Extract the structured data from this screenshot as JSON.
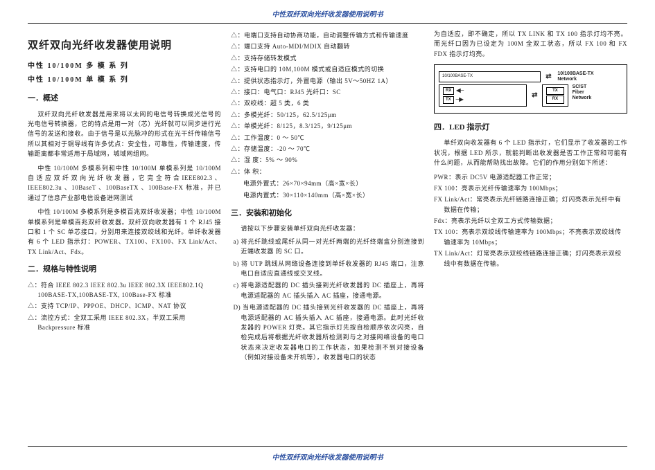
{
  "header_footer": "中性双纤双向光纤收发器使用说明书",
  "colors": {
    "header": "#2b4fa0",
    "text": "#222222",
    "bg": "#ffffff"
  },
  "col1": {
    "title": "双纤双向光纤收发器使用说明",
    "series1": "中性 10/100M 多 模 系 列",
    "series2": "中性 10/100M 单 模 系 列",
    "sec1_h": "一．概述",
    "sec1_p1": "双纤双向光纤收发器是用来将以太网的电信号转换成光信号的光电信号转换器，它的特点是用一对（芯）光纤就可以同步进行光信号的发送和接收。由于信号是以光脉冲的形式在光干纤传输信号所以其相对于铜导线有许多优点：安全性，可靠性，传输速度，传输距离都非常适用于局域网，城域网组网。",
    "sec1_p2": "中性 10/100M 多模系列和中性 10/100M 单模系列是 10/100M 自 适 应 双 纤 双 向 光 纤 收 发 器 ，它 完 全 符 合 IEEE802.3 、 IEEE802.3u 、10BaseT 、100BaseTX 、100Base-FX 标准，并已通过了信息产业部电信设备进网测试",
    "sec1_p3": "中性 10/100M 多模系列是多模百兆双纤收发器；中性 10/100M 单模系列是单模百兆双纤收发器。双纤双向收发器有 1 个 RJ45 接口和 1 个 SC 单芯接口，分别用来连接双绞线和光纤。单纤收发器有 6 个 LED 指示灯：POWER、TX100、FX100、FX Link/Act、TX Link/Act、Fdx。",
    "sec2_h": "二．规格与特性说明",
    "sec2_items": [
      "符合 IEEE 802.3 IEEE 802.3u IEEE 802.3X IEEE802.1Q 100BASE-TX,100BASE-TX, 100Base-FX 标准",
      "支持 TCP/IP、PPPOE、DHCP、ICMP、NAT 协议",
      "流控方式：全双工采用 IEEE 802.3X，半双工采用 Backpressure 标准"
    ]
  },
  "col2": {
    "items_top": [
      "电端口支持自动协商功能，自动调整传输方式和传输速度",
      "端口支持 Auto-MDI/MDIX 自动翻转",
      "支持存储转发模式",
      "支持电口的 10M,100M 模式或自适应模式的切换",
      "提供状态指示灯，外置电源（输出 5V～50HZ 1A）",
      "接口：电气口：RJ45   光纤口：SC",
      "双绞线：超 5 类，6 类",
      "多模光纤：50/125，62.5/125μm",
      "单模光纤：8/125，8.3/125，9/125μm",
      "工作温度：0 ～ 50℃",
      "存储温度：-20 ～ 70℃",
      "湿   度：5% ～ 90%",
      "体   积："
    ],
    "dim1": "电源外置式：26×70×94mm（高×宽×长）",
    "dim2": "电源内置式：30×110×140mm（高×宽×长）",
    "sec3_h": "三．安装和初始化",
    "sec3_intro": "请按以下步骤安装单纤双向光纤收发器：",
    "steps": [
      "a)   将光纤跳线或尾纤从同一对光纤两端的光纤终端盒分别连接到近端收发器 的 SC 口。",
      "b)   将 UTP 跳线从网络设备连接到单纤收发器的 RJ45 端口，注意电口自适应直通线或交叉线。",
      "c)   将电源适配器的 DC 插头接到光纤收发器的 DC 插座上，再将电源适配器的 AC 插头插入 AC 插座，接通电源。",
      "D) 当电源适配器的 DC 插头接到光纤收发器的 DC 插座上，再将电源适配器的 AC 插头插入 AC 插座，接通电源。此时光纤收发器的 POWER 灯亮。其它指示灯先按自检顺序依次闪亮，自检完成后将根据光纤收发器所检测到与之对接网络设备的电口状态来决定收发器电口的工作状态，如果检测不到对接设备（例如对接设备未开机等），收发器电口的状态"
    ]
  },
  "col3": {
    "top_p": "为自适应，即不确定，所以 TX LINK 和 TX 100 指示灯均不亮。而光纤口因为已设定为 100M 全双工状态，所以 FX 100 和 FX FDX 指示灯均亮。",
    "diagram": {
      "left_net": "10/100BASE-TX\nNetwork",
      "rx": "RX",
      "tx": "TX",
      "right_net": "SC/ST\nFiber\nNetwork",
      "box_label": "10/100BASE-TX"
    },
    "sec4_h": "四．LED 指示灯",
    "sec4_p": "单纤双向收发器有 6 个 LED 指示灯，它们显示了收发器的工作状况，根据 LED 所示，就能判断出收发器是否工作正常和可能有什么问题，从而能帮助找出故障。它们的作用分别如下所述：",
    "leds": [
      "PWR：表示 DC5V 电源适配器工作正常；",
      "FX 100：亮表示光纤传输速率为 100Mbps；",
      "FX Link/Act：常亮表示光纤链路连接正确；灯闪亮表示光纤中有数据在传输；",
      "Fdx：亮表示光纤以全双工方式传输数据；",
      "TX 100：亮表示双绞线传输速率为 100Mbps；不亮表示双绞线传输速率为 10Mbps；",
      "TX Link/Act：灯常亮表示双绞线链路连接正确；灯闪亮表示双绞线中有数据在传输。"
    ]
  }
}
